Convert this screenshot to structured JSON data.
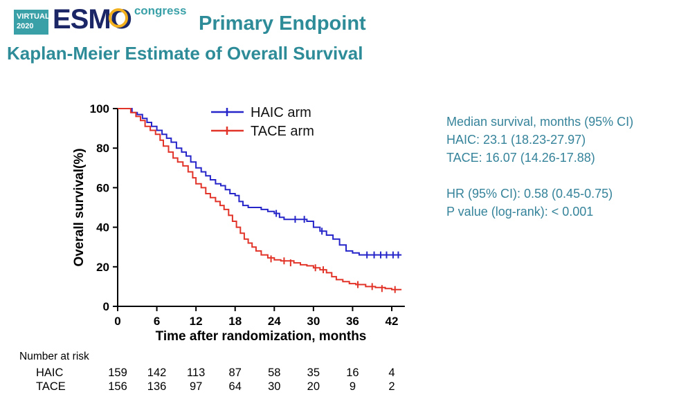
{
  "header": {
    "logo": {
      "virtual_line1": "VIRTUAL",
      "virtual_line2": "2020",
      "esmo": "ESM",
      "esmo_o": "O",
      "congress": "congress"
    },
    "title": "Primary Endpoint",
    "subtitle": "Kaplan-Meier Estimate of Overall Survival"
  },
  "colors": {
    "teal": "#2e8c99",
    "stats_teal": "#35839a",
    "navy": "#1b2666",
    "gold": "#f2b01e",
    "logo_teal": "#3aa0a8"
  },
  "chart_data": {
    "type": "line",
    "subtype": "kaplan-meier-step",
    "title": "Kaplan-Meier Estimate of Overall Survival",
    "xlabel": "Time after randomization, months",
    "ylabel": "Overall survival(%)",
    "xlim": [
      0,
      44
    ],
    "ylim": [
      0,
      100
    ],
    "xticks": [
      0,
      6,
      12,
      18,
      24,
      30,
      36,
      42
    ],
    "yticks": [
      0,
      20,
      40,
      60,
      80,
      100
    ],
    "grid": false,
    "legend_position": "top-inside",
    "series": [
      {
        "name": "HAIC arm",
        "color": "#2525c9",
        "points": [
          [
            0,
            100
          ],
          [
            2.2,
            100
          ],
          [
            2.2,
            98
          ],
          [
            3,
            97
          ],
          [
            3.8,
            95
          ],
          [
            4.5,
            93
          ],
          [
            5.2,
            91
          ],
          [
            6,
            89
          ],
          [
            6.8,
            87
          ],
          [
            7.5,
            85
          ],
          [
            8.2,
            83
          ],
          [
            9,
            80
          ],
          [
            9.8,
            78
          ],
          [
            10.5,
            76
          ],
          [
            11.2,
            73
          ],
          [
            12,
            70
          ],
          [
            12.8,
            68
          ],
          [
            13.5,
            66
          ],
          [
            14.2,
            64
          ],
          [
            15,
            62
          ],
          [
            15.8,
            61
          ],
          [
            16.5,
            59
          ],
          [
            17.2,
            57
          ],
          [
            18,
            56
          ],
          [
            18.6,
            53
          ],
          [
            19.2,
            51
          ],
          [
            20,
            50
          ],
          [
            21,
            50
          ],
          [
            22,
            49
          ],
          [
            23,
            48
          ],
          [
            24,
            47
          ],
          [
            24.8,
            45
          ],
          [
            25.5,
            44
          ],
          [
            28,
            44
          ],
          [
            29,
            43
          ],
          [
            30,
            40
          ],
          [
            31,
            38
          ],
          [
            32,
            36
          ],
          [
            33,
            34
          ],
          [
            34,
            31
          ],
          [
            35,
            28
          ],
          [
            36,
            27
          ],
          [
            37,
            26
          ],
          [
            43.5,
            26
          ]
        ],
        "censor_ticks": [
          [
            24.3,
            47
          ],
          [
            27.2,
            44
          ],
          [
            28.6,
            44
          ],
          [
            31.3,
            38
          ],
          [
            38.2,
            26
          ],
          [
            39.3,
            26
          ],
          [
            40.3,
            26
          ],
          [
            41.2,
            26
          ],
          [
            42.2,
            26
          ],
          [
            43,
            26
          ]
        ]
      },
      {
        "name": "TACE arm",
        "color": "#e23328",
        "points": [
          [
            0,
            100
          ],
          [
            1.5,
            100
          ],
          [
            2,
            98
          ],
          [
            2.8,
            96
          ],
          [
            3.5,
            94
          ],
          [
            4.2,
            91
          ],
          [
            5,
            89
          ],
          [
            5.8,
            87
          ],
          [
            6.5,
            84
          ],
          [
            7,
            81
          ],
          [
            7.8,
            78
          ],
          [
            8.5,
            75
          ],
          [
            9.2,
            73
          ],
          [
            10,
            71
          ],
          [
            10.8,
            68
          ],
          [
            11.5,
            65
          ],
          [
            12,
            62
          ],
          [
            12.8,
            60
          ],
          [
            13.5,
            57
          ],
          [
            14.2,
            55
          ],
          [
            15,
            53
          ],
          [
            15.7,
            51
          ],
          [
            16.3,
            49
          ],
          [
            17,
            46
          ],
          [
            17.6,
            43
          ],
          [
            18.2,
            40
          ],
          [
            18.8,
            37
          ],
          [
            19.4,
            34
          ],
          [
            20,
            32
          ],
          [
            20.6,
            30
          ],
          [
            21.2,
            28
          ],
          [
            22,
            26
          ],
          [
            23,
            24.5
          ],
          [
            24,
            23.5
          ],
          [
            25,
            23
          ],
          [
            27,
            22
          ],
          [
            28,
            21
          ],
          [
            29,
            20.5
          ],
          [
            30,
            19.5
          ],
          [
            31,
            18.5
          ],
          [
            32,
            17
          ],
          [
            32.8,
            15
          ],
          [
            33.5,
            13.5
          ],
          [
            34.5,
            12.5
          ],
          [
            35.5,
            11.5
          ],
          [
            36.5,
            11
          ],
          [
            38,
            10
          ],
          [
            39.5,
            9.5
          ],
          [
            41,
            9
          ],
          [
            42,
            8.5
          ],
          [
            43.5,
            8.5
          ]
        ],
        "censor_ticks": [
          [
            23.5,
            24
          ],
          [
            25.5,
            23
          ],
          [
            26.5,
            22
          ],
          [
            30.3,
            19.5
          ],
          [
            31.5,
            18.5
          ],
          [
            36.8,
            11
          ],
          [
            39,
            10
          ],
          [
            40.5,
            9
          ],
          [
            42.5,
            8.5
          ]
        ]
      }
    ]
  },
  "stats_panel": {
    "group1": [
      "Median survival, months (95% CI)",
      "HAIC: 23.1 (18.23-27.97)",
      "TACE: 16.07 (14.26-17.88)"
    ],
    "group2": [
      "HR (95% CI): 0.58 (0.45-0.75)",
      "P value (log-rank): < 0.001"
    ]
  },
  "risk_table": {
    "title": "Number at risk",
    "timepoints": [
      0,
      6,
      12,
      18,
      24,
      30,
      36,
      42
    ],
    "rows": [
      {
        "label": "HAIC",
        "values": [
          159,
          142,
          113,
          87,
          58,
          35,
          16,
          4
        ]
      },
      {
        "label": "TACE",
        "values": [
          156,
          136,
          97,
          64,
          30,
          20,
          9,
          2
        ]
      }
    ]
  }
}
